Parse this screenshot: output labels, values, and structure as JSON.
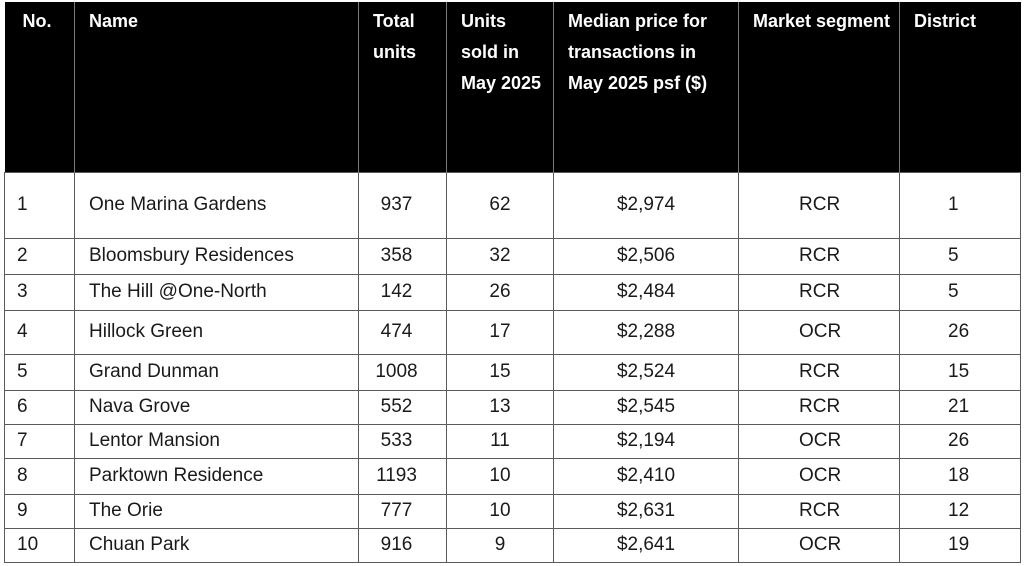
{
  "headers": {
    "no": "No.",
    "name": "Name",
    "total_units": "Total units",
    "units_sold": "Units sold in May 2025",
    "median_price": "Median price for transactions in May 2025 psf ($)",
    "market_segment": "Market segment",
    "district": "District"
  },
  "rows": [
    {
      "no": "1",
      "name": "One Marina Gardens",
      "total_units": "937",
      "units_sold": "62",
      "median_price": "$2,974",
      "market_segment": "RCR",
      "district": "1"
    },
    {
      "no": "2",
      "name": "Bloomsbury Residences",
      "total_units": "358",
      "units_sold": "32",
      "median_price": "$2,506",
      "market_segment": "RCR",
      "district": "5"
    },
    {
      "no": "3",
      "name": "The Hill @One-North",
      "total_units": "142",
      "units_sold": "26",
      "median_price": "$2,484",
      "market_segment": "RCR",
      "district": "5"
    },
    {
      "no": "4",
      "name": "Hillock Green",
      "total_units": "474",
      "units_sold": "17",
      "median_price": "$2,288",
      "market_segment": "OCR",
      "district": "26"
    },
    {
      "no": "5",
      "name": "Grand Dunman",
      "total_units": "1008",
      "units_sold": "15",
      "median_price": "$2,524",
      "market_segment": "RCR",
      "district": "15"
    },
    {
      "no": "6",
      "name": "Nava Grove",
      "total_units": "552",
      "units_sold": "13",
      "median_price": "$2,545",
      "market_segment": "RCR",
      "district": "21"
    },
    {
      "no": "7",
      "name": "Lentor Mansion",
      "total_units": "533",
      "units_sold": "11",
      "median_price": "$2,194",
      "market_segment": "OCR",
      "district": "26"
    },
    {
      "no": "8",
      "name": "Parktown Residence",
      "total_units": "1193",
      "units_sold": "10",
      "median_price": "$2,410",
      "market_segment": "OCR",
      "district": "18"
    },
    {
      "no": "9",
      "name": "The Orie",
      "total_units": "777",
      "units_sold": "10",
      "median_price": "$2,631",
      "market_segment": "RCR",
      "district": "12"
    },
    {
      "no": "10",
      "name": "Chuan Park",
      "total_units": "916",
      "units_sold": "9",
      "median_price": "$2,641",
      "market_segment": "OCR",
      "district": "19"
    }
  ]
}
